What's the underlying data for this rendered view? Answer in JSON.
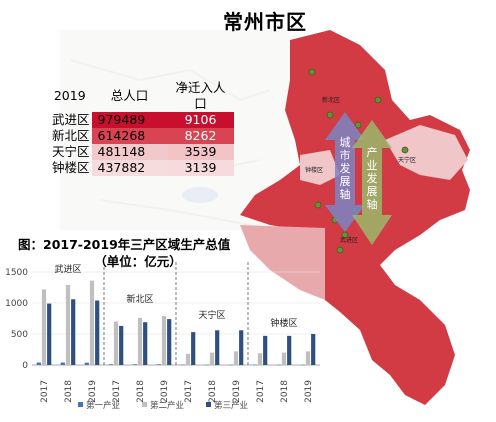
{
  "title": "常州市区",
  "population_table": {
    "headers": [
      "2019",
      "总人口",
      "净迁入人口"
    ],
    "rows": [
      {
        "district": "武进区",
        "total": "979489",
        "net_migration": "9106"
      },
      {
        "district": "新北区",
        "total": "614268",
        "net_migration": "8262"
      },
      {
        "district": "天宁区",
        "total": "481148",
        "net_migration": "3539"
      },
      {
        "district": "钟楼区",
        "total": "437882",
        "net_migration": "3139"
      }
    ],
    "colors_total": [
      "#c8102e",
      "#d94452",
      "#f1c9cb",
      "#f6dcdd"
    ],
    "colors_net": [
      "#c8102e",
      "#d94452",
      "#f2c4c6",
      "#f7dadb"
    ]
  },
  "map": {
    "district_labels": [
      "新北区",
      "天宁区",
      "钟楼区",
      "武进区"
    ],
    "axis_city": "城市发展轴",
    "axis_industry": "产业发展轴",
    "colors": {
      "base": "#d23b44",
      "light": "#e8a9ad",
      "pale": "#f0c6c8",
      "axis_city": "#7b86c4",
      "axis_industry": "#9bb86a"
    }
  },
  "chart_title_line1": "图：2017-2019年三产区域生产总值",
  "chart_title_line2": "（单位：亿元）",
  "chart_data": {
    "type": "bar",
    "groups": [
      "武进区",
      "新北区",
      "天宁区",
      "钟楼区"
    ],
    "years": [
      "2017",
      "2018",
      "2019"
    ],
    "x": [
      "2017",
      "2018",
      "2019",
      "2017",
      "2018",
      "2019",
      "2017",
      "2018",
      "2019",
      "2017",
      "2018",
      "2019"
    ],
    "series": [
      {
        "name": "第一产业",
        "color": "#4472c4",
        "values": [
          40,
          40,
          38,
          12,
          12,
          12,
          5,
          5,
          5,
          4,
          4,
          4
        ]
      },
      {
        "name": "第二产业",
        "color": "#bfbfbf",
        "values": [
          1220,
          1290,
          1360,
          700,
          760,
          790,
          180,
          200,
          220,
          190,
          200,
          220
        ]
      },
      {
        "name": "第三产业",
        "color": "#2f4f80",
        "values": [
          990,
          1060,
          1040,
          630,
          690,
          740,
          530,
          560,
          560,
          470,
          470,
          500
        ]
      }
    ],
    "yticks": [
      "0",
      "500",
      "1000",
      "1500"
    ],
    "ylim": [
      0,
      1500
    ]
  }
}
